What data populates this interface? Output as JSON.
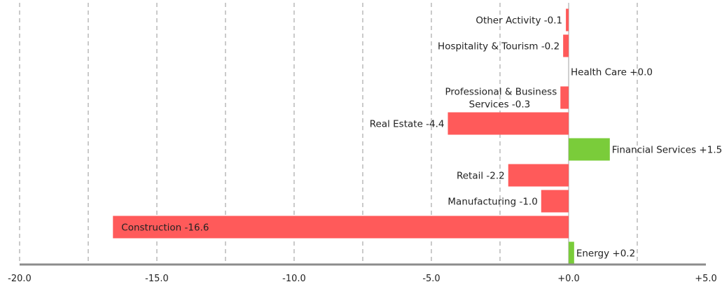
{
  "chart_data": {
    "type": "bar",
    "orientation": "horizontal",
    "title": "",
    "xlabel": "",
    "ylabel": "",
    "xlim": [
      -20,
      5
    ],
    "grid": true,
    "grid_style": "dashed-vertical",
    "legend": "none",
    "x_ticks": [
      {
        "value": -20,
        "label": "-20.0"
      },
      {
        "value": -15,
        "label": "-15.0"
      },
      {
        "value": -10,
        "label": "-10.0"
      },
      {
        "value": -5,
        "label": "-5.0"
      },
      {
        "value": 0,
        "label": "+0.0"
      },
      {
        "value": 5,
        "label": "+5.0"
      }
    ],
    "gridlines": [
      -20,
      -17.5,
      -15,
      -12.5,
      -10,
      -7.5,
      -5,
      -2.5,
      2.5
    ],
    "categories": [
      "Other Activity",
      "Hospitality & Tourism",
      "Health Care",
      "Professional & Business Services",
      "Real Estate",
      "Financial Services",
      "Retail",
      "Manufacturing",
      "Construction",
      "Energy"
    ],
    "values": [
      -0.1,
      -0.2,
      0.0,
      -0.3,
      -4.4,
      1.5,
      -2.2,
      -1.0,
      -16.6,
      0.2
    ],
    "data_labels": [
      [
        "Other Activity -0.1"
      ],
      [
        "Hospitality & Tourism -0.2"
      ],
      [
        "Health Care +0.0"
      ],
      [
        "Professional & Business",
        "Services -0.3"
      ],
      [
        "Real Estate -4.4"
      ],
      [
        "Financial Services +1.5"
      ],
      [
        "Retail -2.2"
      ],
      [
        "Manufacturing -1.0"
      ],
      [
        "Construction -16.6"
      ],
      [
        "Energy +0.2"
      ]
    ],
    "label_placement": [
      "outside",
      "outside",
      "outside",
      "outside",
      "outside",
      "outside",
      "outside",
      "outside",
      "inside",
      "outside"
    ],
    "colors": {
      "negative": "#ff5a5a",
      "positive": "#7acc3a",
      "grid": "#a8a8a8",
      "axis": "#8c8c8c",
      "zero_line": "#a0a0a0"
    }
  }
}
